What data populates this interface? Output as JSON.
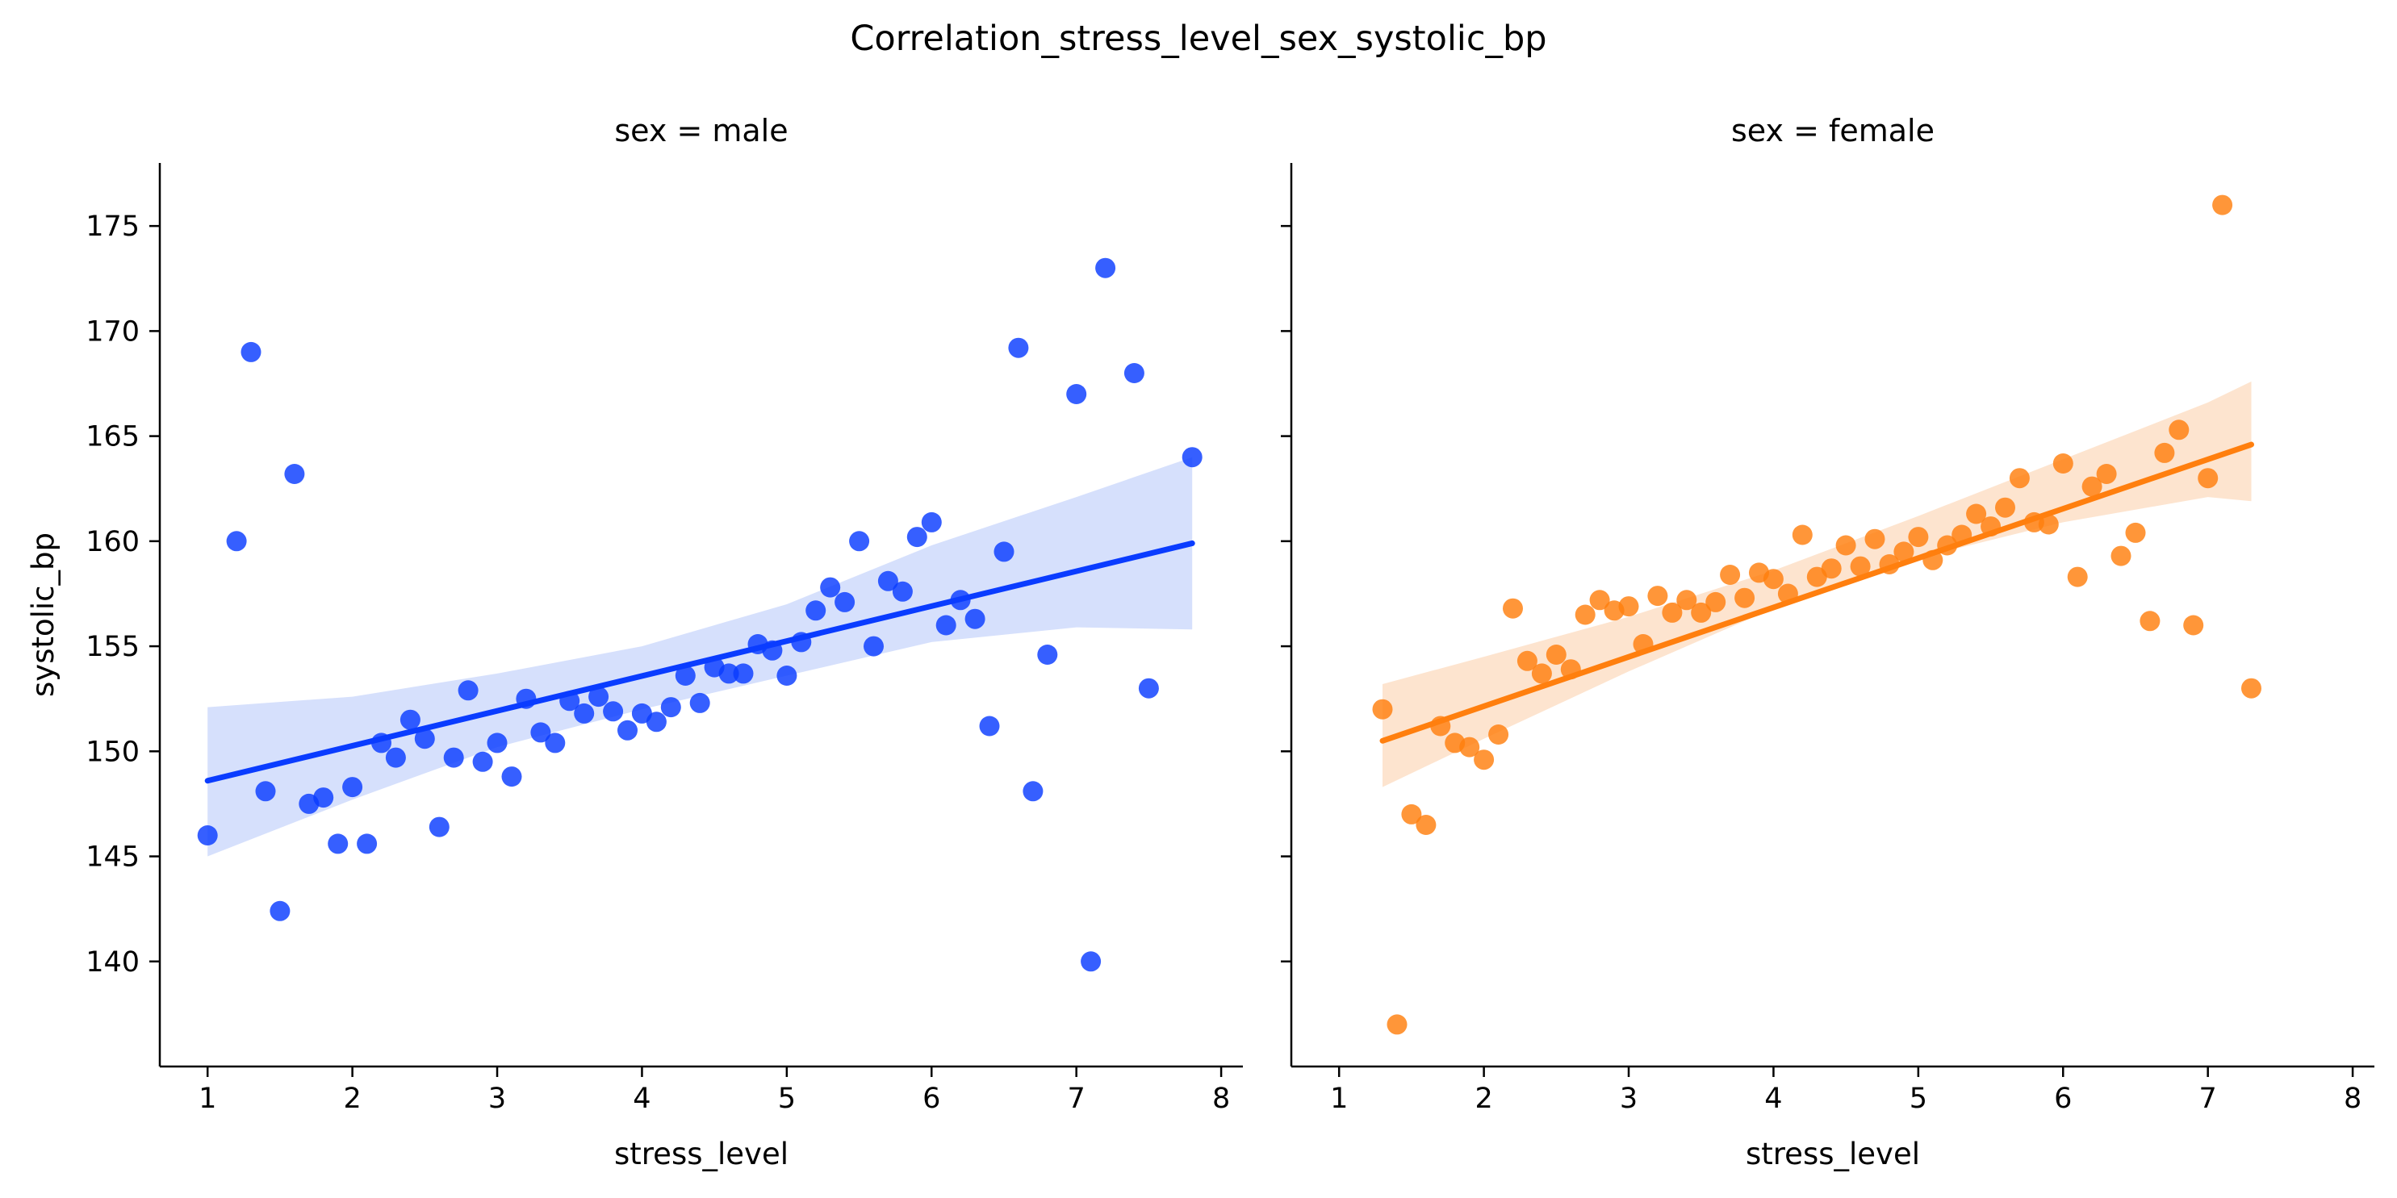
{
  "figure_title": "Correlation_stress_level_sex_systolic_bp",
  "chart_data": {
    "type": "scatter",
    "title": "Correlation_stress_level_sex_systolic_bp",
    "xlabel": "stress_level",
    "ylabel": "systolic_bp",
    "xlim": [
      0.67,
      8.15
    ],
    "ylim": [
      135.0,
      178.0
    ],
    "x_ticks": [
      1,
      2,
      3,
      4,
      5,
      6,
      7,
      8
    ],
    "y_ticks": [
      140,
      145,
      150,
      155,
      160,
      165,
      170,
      175
    ],
    "grid": false,
    "legend": "none",
    "panels": [
      {
        "title": "sex = male",
        "color": "#0a3cff",
        "band_color": "#d6e0fc",
        "points": [
          [
            1.0,
            146.0
          ],
          [
            1.2,
            160.0
          ],
          [
            1.3,
            169.0
          ],
          [
            1.4,
            148.1
          ],
          [
            1.5,
            142.4
          ],
          [
            1.6,
            163.2
          ],
          [
            1.7,
            147.5
          ],
          [
            1.8,
            147.8
          ],
          [
            1.9,
            145.6
          ],
          [
            2.0,
            148.3
          ],
          [
            2.1,
            145.6
          ],
          [
            2.2,
            150.4
          ],
          [
            2.3,
            149.7
          ],
          [
            2.4,
            151.5
          ],
          [
            2.5,
            150.6
          ],
          [
            2.6,
            146.4
          ],
          [
            2.7,
            149.7
          ],
          [
            2.8,
            152.9
          ],
          [
            2.9,
            149.5
          ],
          [
            3.0,
            150.4
          ],
          [
            3.1,
            148.8
          ],
          [
            3.2,
            152.5
          ],
          [
            3.3,
            150.9
          ],
          [
            3.4,
            150.4
          ],
          [
            3.5,
            152.4
          ],
          [
            3.6,
            151.8
          ],
          [
            3.7,
            152.6
          ],
          [
            3.8,
            151.9
          ],
          [
            3.9,
            151.0
          ],
          [
            4.0,
            151.8
          ],
          [
            4.1,
            151.4
          ],
          [
            4.2,
            152.1
          ],
          [
            4.3,
            153.6
          ],
          [
            4.4,
            152.3
          ],
          [
            4.5,
            154.0
          ],
          [
            4.6,
            153.7
          ],
          [
            4.7,
            153.7
          ],
          [
            4.8,
            155.1
          ],
          [
            4.9,
            154.8
          ],
          [
            5.0,
            153.6
          ],
          [
            5.1,
            155.2
          ],
          [
            5.2,
            156.7
          ],
          [
            5.3,
            157.8
          ],
          [
            5.4,
            157.1
          ],
          [
            5.5,
            160.0
          ],
          [
            5.6,
            155.0
          ],
          [
            5.7,
            158.1
          ],
          [
            5.8,
            157.6
          ],
          [
            5.9,
            160.2
          ],
          [
            6.0,
            160.9
          ],
          [
            6.1,
            156.0
          ],
          [
            6.2,
            157.2
          ],
          [
            6.3,
            156.3
          ],
          [
            6.4,
            151.2
          ],
          [
            6.5,
            159.5
          ],
          [
            6.6,
            169.2
          ],
          [
            6.7,
            148.1
          ],
          [
            6.8,
            154.6
          ],
          [
            7.0,
            167.0
          ],
          [
            7.1,
            140.0
          ],
          [
            7.2,
            173.0
          ],
          [
            7.4,
            168.0
          ],
          [
            7.5,
            153.0
          ],
          [
            7.8,
            164.0
          ]
        ],
        "fit": {
          "x": [
            1.0,
            7.8
          ],
          "y": [
            148.6,
            159.9
          ]
        },
        "ci": {
          "x": [
            1.0,
            2.0,
            3.0,
            4.0,
            5.0,
            6.0,
            7.0,
            7.8
          ],
          "lower": [
            145.0,
            147.7,
            150.2,
            152.0,
            153.6,
            155.2,
            155.9,
            155.8
          ],
          "upper": [
            152.1,
            152.6,
            153.7,
            155.0,
            157.0,
            159.8,
            162.1,
            164.0
          ]
        }
      },
      {
        "title": "sex = female",
        "color": "#ff7f0e",
        "band_color": "#fde4cf",
        "points": [
          [
            1.3,
            152.0
          ],
          [
            1.4,
            137.0
          ],
          [
            1.5,
            147.0
          ],
          [
            1.6,
            146.5
          ],
          [
            1.7,
            151.2
          ],
          [
            1.8,
            150.4
          ],
          [
            1.9,
            150.2
          ],
          [
            2.0,
            149.6
          ],
          [
            2.1,
            150.8
          ],
          [
            2.2,
            156.8
          ],
          [
            2.3,
            154.3
          ],
          [
            2.4,
            153.7
          ],
          [
            2.5,
            154.6
          ],
          [
            2.6,
            153.9
          ],
          [
            2.7,
            156.5
          ],
          [
            2.8,
            157.2
          ],
          [
            2.9,
            156.7
          ],
          [
            3.0,
            156.9
          ],
          [
            3.1,
            155.1
          ],
          [
            3.2,
            157.4
          ],
          [
            3.3,
            156.6
          ],
          [
            3.4,
            157.2
          ],
          [
            3.5,
            156.6
          ],
          [
            3.6,
            157.1
          ],
          [
            3.7,
            158.4
          ],
          [
            3.8,
            157.3
          ],
          [
            3.9,
            158.5
          ],
          [
            4.0,
            158.2
          ],
          [
            4.1,
            157.5
          ],
          [
            4.2,
            160.3
          ],
          [
            4.3,
            158.3
          ],
          [
            4.4,
            158.7
          ],
          [
            4.5,
            159.8
          ],
          [
            4.6,
            158.8
          ],
          [
            4.7,
            160.1
          ],
          [
            4.8,
            158.9
          ],
          [
            4.9,
            159.5
          ],
          [
            5.0,
            160.2
          ],
          [
            5.1,
            159.1
          ],
          [
            5.2,
            159.8
          ],
          [
            5.3,
            160.3
          ],
          [
            5.4,
            161.3
          ],
          [
            5.5,
            160.7
          ],
          [
            5.6,
            161.6
          ],
          [
            5.7,
            163.0
          ],
          [
            5.8,
            160.9
          ],
          [
            5.9,
            160.8
          ],
          [
            6.0,
            163.7
          ],
          [
            6.1,
            158.3
          ],
          [
            6.2,
            162.6
          ],
          [
            6.3,
            163.2
          ],
          [
            6.4,
            159.3
          ],
          [
            6.5,
            160.4
          ],
          [
            6.6,
            156.2
          ],
          [
            6.7,
            164.2
          ],
          [
            6.8,
            165.3
          ],
          [
            6.9,
            156.0
          ],
          [
            7.0,
            163.0
          ],
          [
            7.1,
            176.0
          ],
          [
            7.3,
            153.0
          ]
        ],
        "fit": {
          "x": [
            1.3,
            7.3
          ],
          "y": [
            150.5,
            164.6
          ]
        },
        "ci": {
          "x": [
            1.3,
            2.0,
            3.0,
            4.0,
            5.0,
            6.0,
            7.0,
            7.3
          ],
          "lower": [
            148.3,
            150.6,
            153.8,
            156.8,
            159.2,
            160.9,
            162.1,
            161.9
          ],
          "upper": [
            153.2,
            154.5,
            156.4,
            158.6,
            161.2,
            163.9,
            166.6,
            167.6
          ]
        }
      }
    ]
  }
}
